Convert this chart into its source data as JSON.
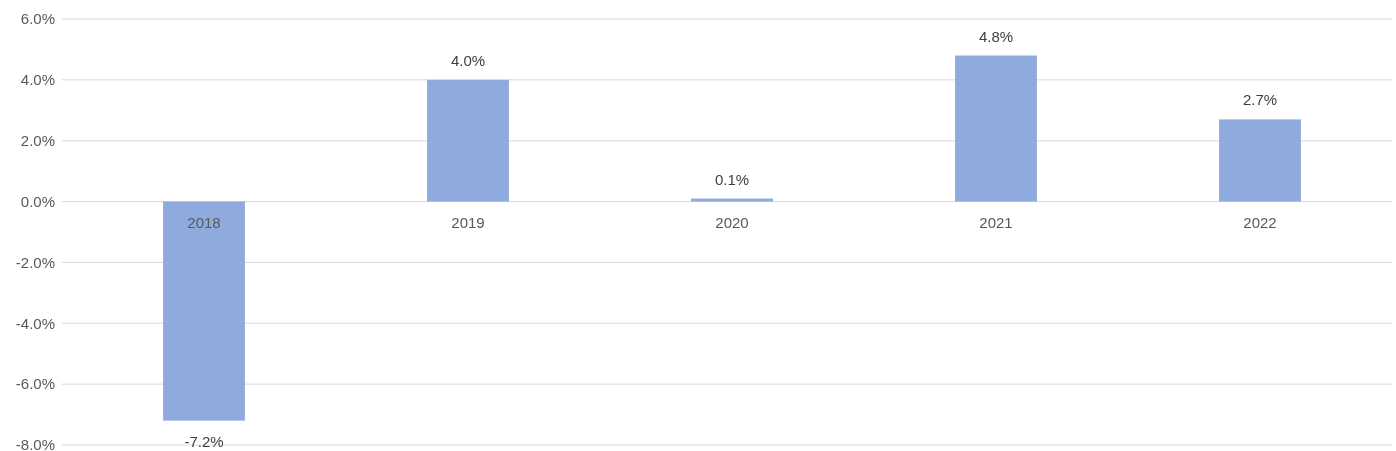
{
  "chart_data": {
    "type": "bar",
    "categories": [
      "2018",
      "2019",
      "2020",
      "2021",
      "2022"
    ],
    "values": [
      -7.2,
      4.0,
      0.1,
      4.8,
      2.7
    ],
    "color": "#8faadc",
    "value_labels": [
      "-7.2%",
      "4.0%",
      "0.1%",
      "4.8%",
      "2.7%"
    ],
    "ylim": [
      -8,
      6
    ],
    "yticks": [
      {
        "value": -8,
        "label": "-8.0%"
      },
      {
        "value": -6,
        "label": "-6.0%"
      },
      {
        "value": -4,
        "label": "-4.0%"
      },
      {
        "value": -2,
        "label": "-2.0%"
      },
      {
        "value": 0,
        "label": "0.0%"
      },
      {
        "value": 2,
        "label": "2.0%"
      },
      {
        "value": 4,
        "label": "4.0%"
      },
      {
        "value": 6,
        "label": "6.0%"
      }
    ],
    "grid": "y"
  }
}
